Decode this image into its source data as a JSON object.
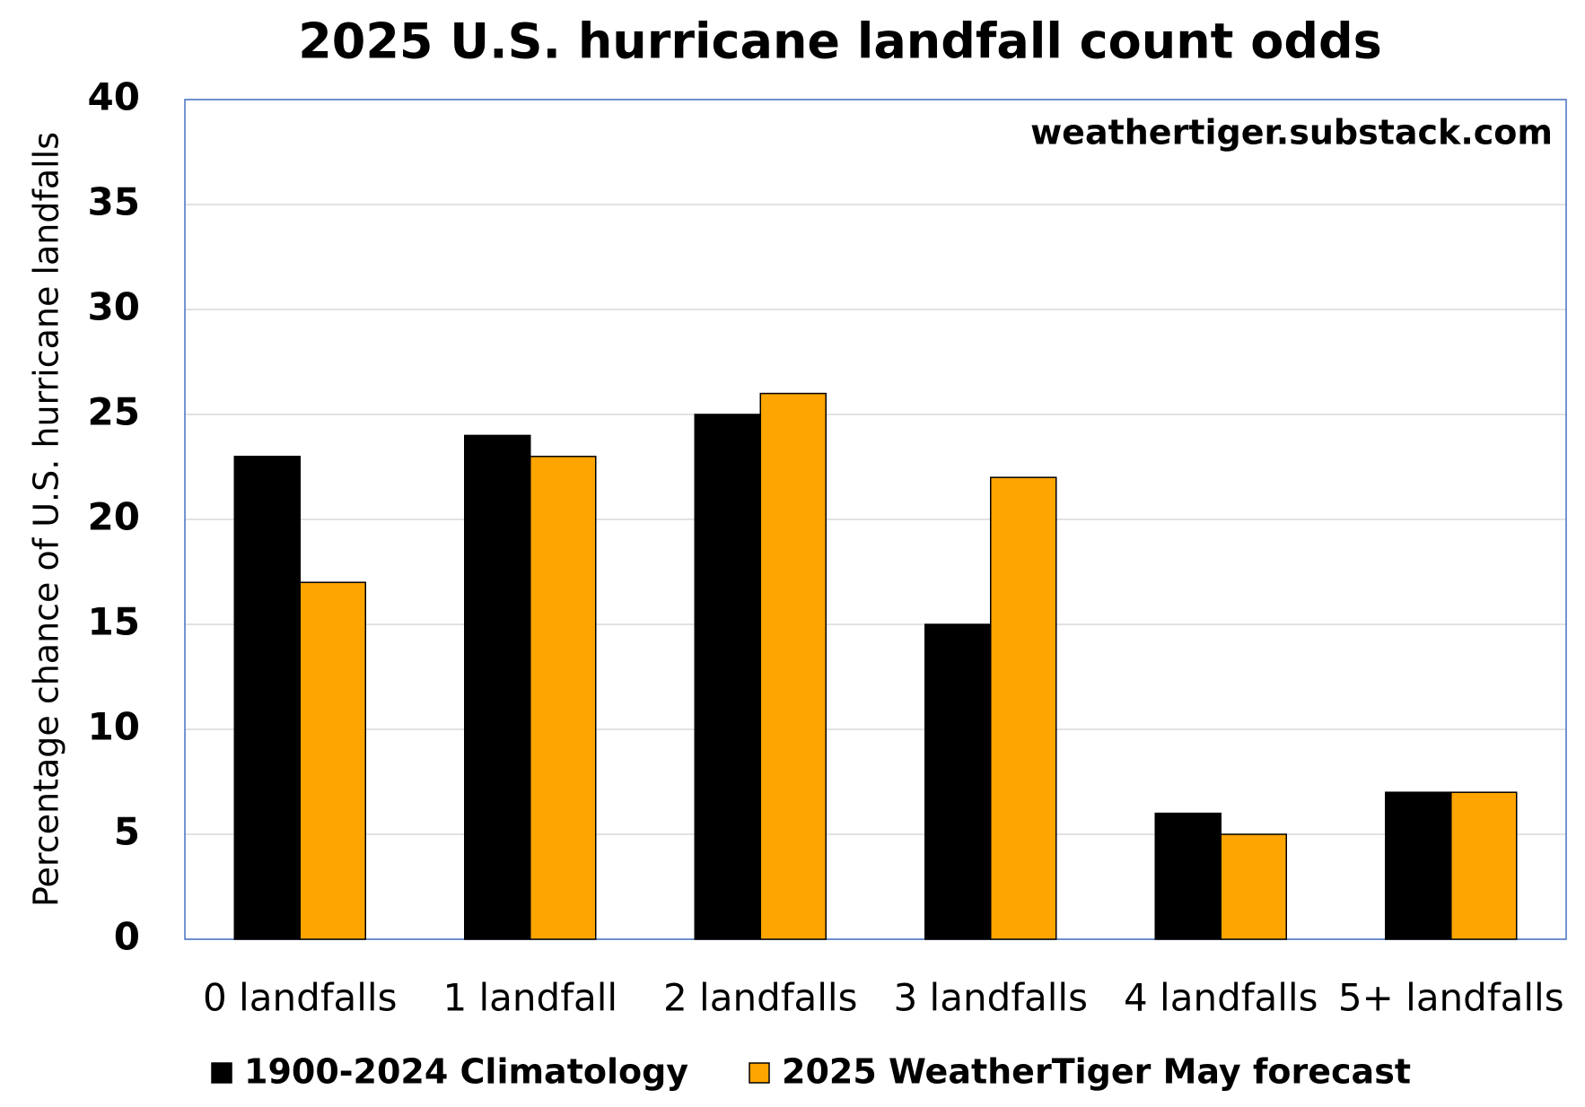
{
  "chart_data": {
    "type": "bar",
    "title": "2025 U.S. hurricane landfall count odds",
    "annotation": "weathertiger.substack.com",
    "y_label": "Percentage chance of U.S. hurricane landfalls",
    "categories": [
      "0 landfalls",
      "1 landfall",
      "2 landfalls",
      "3 landfalls",
      "4 landfalls",
      "5+ landfalls"
    ],
    "series": [
      {
        "name": "1900-2024 Climatology",
        "color": "#000000",
        "values": [
          23,
          24,
          25,
          15,
          6,
          7
        ]
      },
      {
        "name": "2025 WeatherTiger May forecast",
        "color": "#ffa500",
        "values": [
          17,
          23,
          26,
          22,
          5,
          7
        ]
      }
    ],
    "ylim": [
      0,
      40
    ],
    "yticks": [
      0,
      5,
      10,
      15,
      20,
      25,
      30,
      35,
      40
    ],
    "grid": true,
    "legend": "bottom"
  }
}
